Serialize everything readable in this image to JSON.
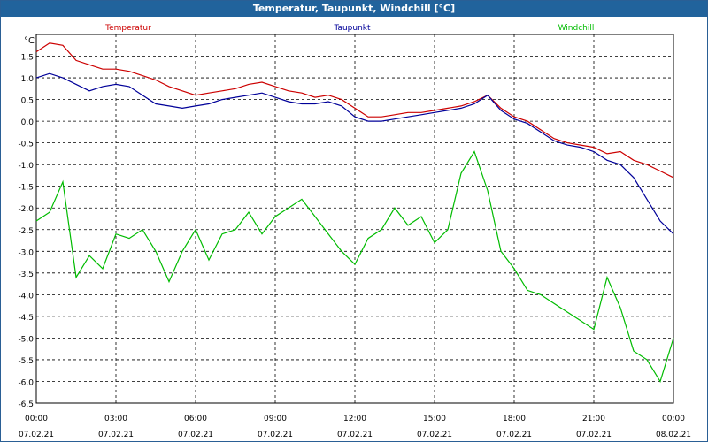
{
  "window": {
    "title": "Temperatur, Taupunkt, Windchill [°C]"
  },
  "chart_data": {
    "type": "line",
    "title": "Temperatur, Taupunkt, Windchill [°C]",
    "yunit": "°C",
    "ylim": [
      -6.5,
      2.0
    ],
    "y_ticks": [
      1.5,
      1.0,
      0.5,
      0.0,
      -0.5,
      -1.0,
      -1.5,
      -2.0,
      -2.5,
      -3.0,
      -3.5,
      -4.0,
      -4.5,
      -5.0,
      -5.5,
      -6.0,
      -6.5
    ],
    "y_tick_labels": [
      "1.5",
      "1.0",
      "0.5",
      "0.0",
      "-0.5",
      "-1.0",
      "-1.5",
      "-2.0",
      "-2.5",
      "-3.0",
      "-3.5",
      "-4.0",
      "-4.5",
      "-5.0",
      "-5.5",
      "-6.0",
      "-6.5"
    ],
    "xlim_hours": [
      0,
      24
    ],
    "x_ticks": [
      {
        "hour": 0,
        "time": "00:00",
        "date": "07.02.21"
      },
      {
        "hour": 3,
        "time": "03:00",
        "date": "07.02.21"
      },
      {
        "hour": 6,
        "time": "06:00",
        "date": "07.02.21"
      },
      {
        "hour": 9,
        "time": "09:00",
        "date": "07.02.21"
      },
      {
        "hour": 12,
        "time": "12:00",
        "date": "07.02.21"
      },
      {
        "hour": 15,
        "time": "15:00",
        "date": "07.02.21"
      },
      {
        "hour": 18,
        "time": "18:00",
        "date": "07.02.21"
      },
      {
        "hour": 21,
        "time": "21:00",
        "date": "07.02.21"
      },
      {
        "hour": 24,
        "time": "00:00",
        "date": "08.02.21"
      }
    ],
    "grid": true,
    "legend_placement": "top",
    "x": [
      0,
      0.5,
      1,
      1.5,
      2,
      2.5,
      3,
      3.5,
      4,
      4.5,
      5,
      5.5,
      6,
      6.5,
      7,
      7.5,
      8,
      8.5,
      9,
      9.5,
      10,
      10.5,
      11,
      11.5,
      12,
      12.5,
      13,
      13.5,
      14,
      14.5,
      15,
      15.5,
      16,
      16.5,
      17,
      17.5,
      18,
      18.5,
      19,
      19.5,
      20,
      20.5,
      21,
      21.5,
      22,
      22.5,
      23,
      23.5,
      24
    ],
    "series": [
      {
        "name": "Temperatur",
        "color": "#cc0000",
        "values": [
          1.6,
          1.8,
          1.75,
          1.4,
          1.3,
          1.2,
          1.2,
          1.15,
          1.05,
          0.95,
          0.8,
          0.7,
          0.6,
          0.65,
          0.7,
          0.75,
          0.85,
          0.9,
          0.8,
          0.7,
          0.65,
          0.55,
          0.6,
          0.5,
          0.3,
          0.1,
          0.1,
          0.15,
          0.2,
          0.2,
          0.25,
          0.3,
          0.35,
          0.45,
          0.6,
          0.3,
          0.1,
          0.0,
          -0.2,
          -0.4,
          -0.5,
          -0.55,
          -0.6,
          -0.75,
          -0.7,
          -0.9,
          -1.0,
          -1.15,
          -1.3
        ]
      },
      {
        "name": "Taupunkt",
        "color": "#000099",
        "values": [
          1.0,
          1.1,
          1.0,
          0.85,
          0.7,
          0.8,
          0.85,
          0.8,
          0.6,
          0.4,
          0.35,
          0.3,
          0.35,
          0.4,
          0.5,
          0.55,
          0.6,
          0.65,
          0.55,
          0.45,
          0.4,
          0.4,
          0.45,
          0.35,
          0.1,
          0.0,
          0.0,
          0.05,
          0.1,
          0.15,
          0.2,
          0.25,
          0.3,
          0.4,
          0.6,
          0.25,
          0.05,
          -0.05,
          -0.25,
          -0.45,
          -0.55,
          -0.6,
          -0.7,
          -0.9,
          -1.0,
          -1.3,
          -1.8,
          -2.3,
          -2.6
        ]
      },
      {
        "name": "Windchill",
        "color": "#00bb00",
        "values": [
          -2.3,
          -2.1,
          -1.4,
          -3.6,
          -3.1,
          -3.4,
          -2.6,
          -2.7,
          -2.5,
          -3.0,
          -3.7,
          -3.0,
          -2.5,
          -3.2,
          -2.6,
          -2.5,
          -2.1,
          -2.6,
          -2.2,
          -2.0,
          -1.8,
          -2.2,
          -2.6,
          -3.0,
          -3.3,
          -2.7,
          -2.5,
          -2.0,
          -2.4,
          -2.2,
          -2.8,
          -2.5,
          -1.2,
          -0.7,
          -1.6,
          -3.0,
          -3.4,
          -3.9,
          -4.0,
          -4.2,
          -4.4,
          -4.6,
          -4.8,
          -3.6,
          -4.3,
          -5.3,
          -5.5,
          -6.0,
          -5.0
        ]
      }
    ]
  }
}
